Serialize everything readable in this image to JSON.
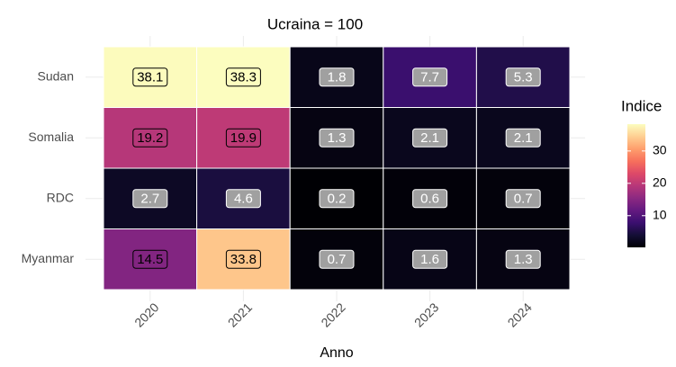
{
  "chart_data": {
    "type": "heatmap",
    "title": "Ucraina = 100",
    "x_label": "Anno",
    "categories": [
      "2020",
      "2021",
      "2022",
      "2023",
      "2024"
    ],
    "rows": [
      "Sudan",
      "Somalia",
      "RDC",
      "Myanmar"
    ],
    "values": [
      [
        38.1,
        38.3,
        1.8,
        7.7,
        5.3
      ],
      [
        19.2,
        19.9,
        1.3,
        2.1,
        2.1
      ],
      [
        2.7,
        4.6,
        0.2,
        0.6,
        0.7
      ],
      [
        14.5,
        33.8,
        0.7,
        1.6,
        1.3
      ]
    ],
    "legend_title": "Indice",
    "colorbar_lim": [
      0.2,
      38.3
    ],
    "colorbar_ticks": [
      10,
      20,
      30
    ],
    "colorscale": [
      "#000004",
      "#140e36",
      "#3b0f70",
      "#641a80",
      "#8c2981",
      "#b73779",
      "#de4968",
      "#f7705c",
      "#fe9f6d",
      "#fecf92",
      "#fcfdbf"
    ],
    "legend_position": "right"
  }
}
